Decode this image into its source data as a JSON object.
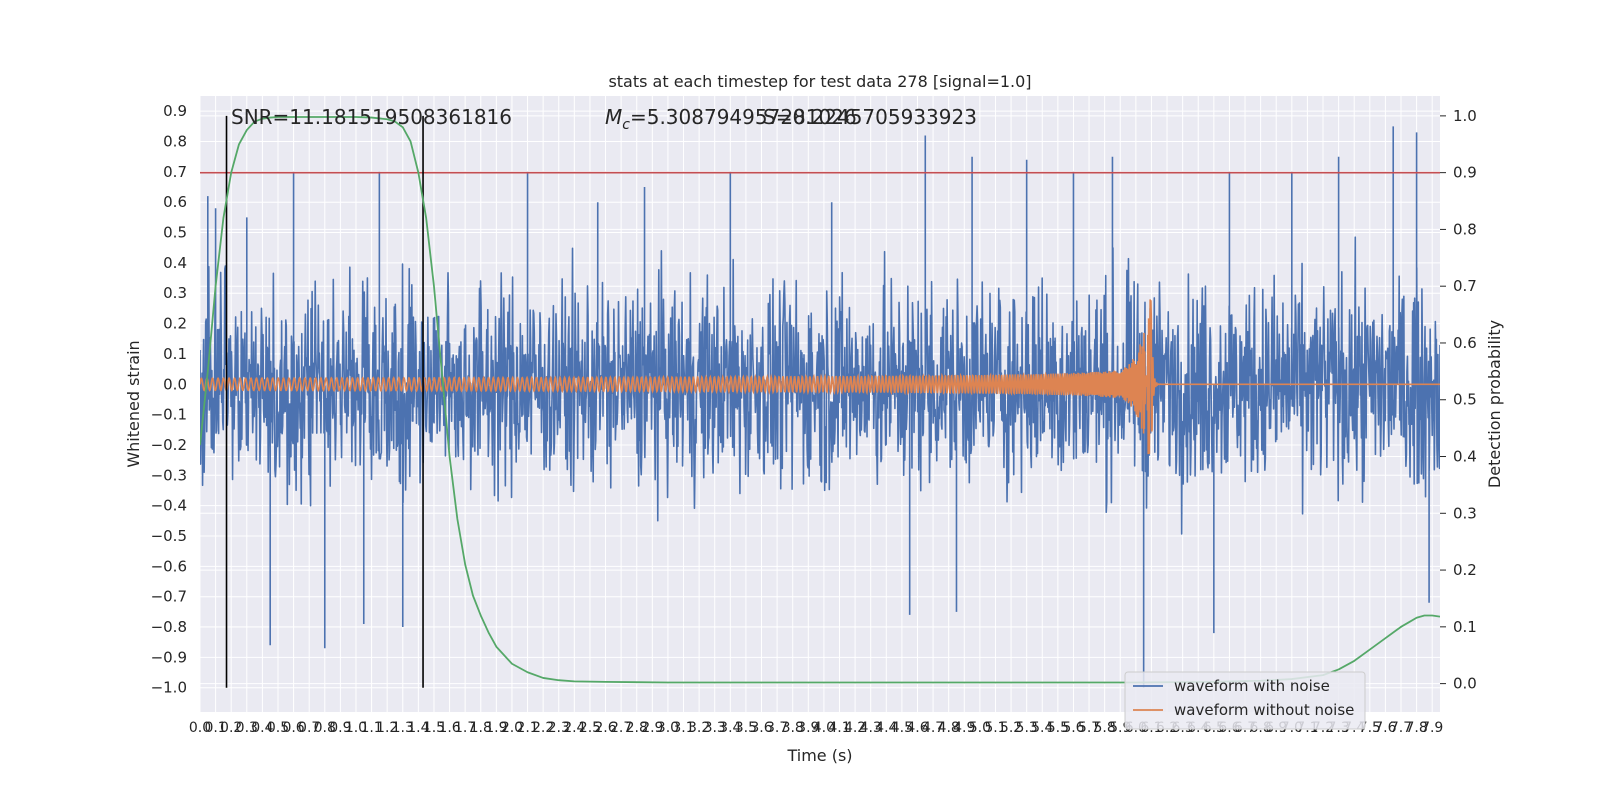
{
  "chart_data": {
    "type": "line",
    "title": "stats at each timestep for test data 278 [signal=1.0]",
    "xlabel": "Time (s)",
    "ylabel_left": "Whitened strain",
    "ylabel_right": "Detection probability",
    "xlim": [
      0.0,
      7.95
    ],
    "ylim_left": [
      -1.08,
      0.95
    ],
    "ylim_right": [
      -0.05,
      1.035
    ],
    "grid": true,
    "x_ticks": [
      "0.0",
      "0.1",
      "0.2",
      "0.3",
      "0.4",
      "0.5",
      "0.6",
      "0.7",
      "0.8",
      "0.9",
      "1.0",
      "1.1",
      "1.2",
      "1.3",
      "1.4",
      "1.5",
      "1.6",
      "1.7",
      "1.8",
      "1.9",
      "2.0",
      "2.1",
      "2.2",
      "2.3",
      "2.4",
      "2.5",
      "2.6",
      "2.7",
      "2.8",
      "2.9",
      "3.0",
      "3.1",
      "3.2",
      "3.3",
      "3.4",
      "3.5",
      "3.6",
      "3.7",
      "3.8",
      "3.9",
      "4.0",
      "4.1",
      "4.2",
      "4.3",
      "4.4",
      "4.5",
      "4.6",
      "4.7",
      "4.8",
      "4.9",
      "5.0",
      "5.1",
      "5.2",
      "5.3",
      "5.4",
      "5.5",
      "5.6",
      "5.7",
      "5.8",
      "5.9",
      "6.0",
      "6.1",
      "6.2",
      "6.3",
      "6.4",
      "6.5",
      "6.6",
      "6.7",
      "6.8",
      "6.9",
      "7.0",
      "7.1",
      "7.2",
      "7.3",
      "7.4",
      "7.5",
      "7.6",
      "7.7",
      "7.8",
      "7.9"
    ],
    "y_ticks_left": [
      "0.9",
      "0.8",
      "0.7",
      "0.6",
      "0.5",
      "0.4",
      "0.3",
      "0.2",
      "0.1",
      "0.0",
      "−0.1",
      "−0.2",
      "−0.3",
      "−0.4",
      "−0.5",
      "−0.6",
      "−0.7",
      "−0.8",
      "−0.9",
      "−1.0"
    ],
    "y_ticks_right": [
      "1.0",
      "0.9",
      "0.8",
      "0.7",
      "0.6",
      "0.5",
      "0.4",
      "0.3",
      "0.2",
      "0.1",
      "0.0"
    ],
    "annotations": {
      "snr": "SNR=11.181519508361816",
      "mc_symbol": "M",
      "mc_sub": "c",
      "mc_value": "=5.308794957281026",
      "overlap": "S=0.2245705933923"
    },
    "series": [
      {
        "name": "waveform with noise",
        "color": "#4c72b0",
        "axis": "left",
        "kind": "noise",
        "typical_amplitude": 0.3,
        "peaks": [
          [
            0.05,
            0.62
          ],
          [
            0.1,
            0.58
          ],
          [
            0.3,
            0.55
          ],
          [
            0.45,
            -0.86
          ],
          [
            0.6,
            0.7
          ],
          [
            0.8,
            -0.87
          ],
          [
            1.05,
            -0.79
          ],
          [
            1.15,
            0.7
          ],
          [
            1.3,
            -0.8
          ],
          [
            2.1,
            0.7
          ],
          [
            2.55,
            0.6
          ],
          [
            2.85,
            0.65
          ],
          [
            3.4,
            0.7
          ],
          [
            4.05,
            0.6
          ],
          [
            4.55,
            -0.76
          ],
          [
            4.65,
            0.82
          ],
          [
            4.85,
            -0.75
          ],
          [
            4.95,
            0.75
          ],
          [
            5.3,
            0.74
          ],
          [
            5.6,
            0.7
          ],
          [
            5.85,
            0.75
          ],
          [
            6.05,
            -1.0
          ],
          [
            6.5,
            -0.82
          ],
          [
            6.6,
            0.7
          ],
          [
            7.0,
            0.7
          ],
          [
            7.3,
            0.75
          ],
          [
            7.65,
            0.85
          ],
          [
            7.8,
            0.83
          ],
          [
            7.88,
            -0.72
          ]
        ]
      },
      {
        "name": "waveform without noise",
        "color": "#dd8452",
        "axis": "left",
        "kind": "chirp",
        "merger_time": 6.1,
        "amplitude_start": 0.02,
        "amplitude_peak": 0.28
      },
      {
        "name": "detection probability",
        "color": "#55a868",
        "axis": "right",
        "x": [
          0.0,
          0.05,
          0.1,
          0.15,
          0.2,
          0.25,
          0.3,
          0.35,
          0.4,
          0.45,
          0.5,
          0.6,
          0.7,
          0.8,
          0.9,
          1.0,
          1.1,
          1.2,
          1.25,
          1.3,
          1.35,
          1.4,
          1.45,
          1.5,
          1.55,
          1.6,
          1.65,
          1.7,
          1.75,
          1.8,
          1.85,
          1.9,
          1.95,
          2.0,
          2.1,
          2.2,
          2.3,
          2.4,
          2.6,
          3.0,
          4.0,
          5.0,
          6.0,
          6.5,
          6.8,
          7.0,
          7.2,
          7.3,
          7.4,
          7.5,
          7.6,
          7.7,
          7.75,
          7.8,
          7.85,
          7.9,
          7.95
        ],
        "y": [
          0.42,
          0.55,
          0.7,
          0.82,
          0.9,
          0.95,
          0.975,
          0.99,
          0.995,
          0.997,
          0.998,
          0.998,
          0.998,
          0.998,
          0.998,
          0.998,
          0.997,
          0.994,
          0.99,
          0.98,
          0.955,
          0.9,
          0.82,
          0.7,
          0.55,
          0.4,
          0.29,
          0.21,
          0.155,
          0.12,
          0.09,
          0.065,
          0.05,
          0.035,
          0.02,
          0.01,
          0.006,
          0.004,
          0.003,
          0.002,
          0.002,
          0.002,
          0.002,
          0.003,
          0.005,
          0.008,
          0.015,
          0.025,
          0.04,
          0.06,
          0.08,
          0.1,
          0.108,
          0.116,
          0.12,
          0.12,
          0.118
        ]
      }
    ],
    "threshold": {
      "value": 0.9,
      "axis": "right",
      "color": "#c44e52"
    },
    "window_lines": {
      "x": [
        0.17,
        1.43
      ],
      "color": "#000000",
      "ymin_left": -1.0,
      "ymax_right": 1.0
    },
    "legend": {
      "placement": "lower-right",
      "entries": [
        "waveform with noise",
        "waveform without noise"
      ]
    }
  }
}
